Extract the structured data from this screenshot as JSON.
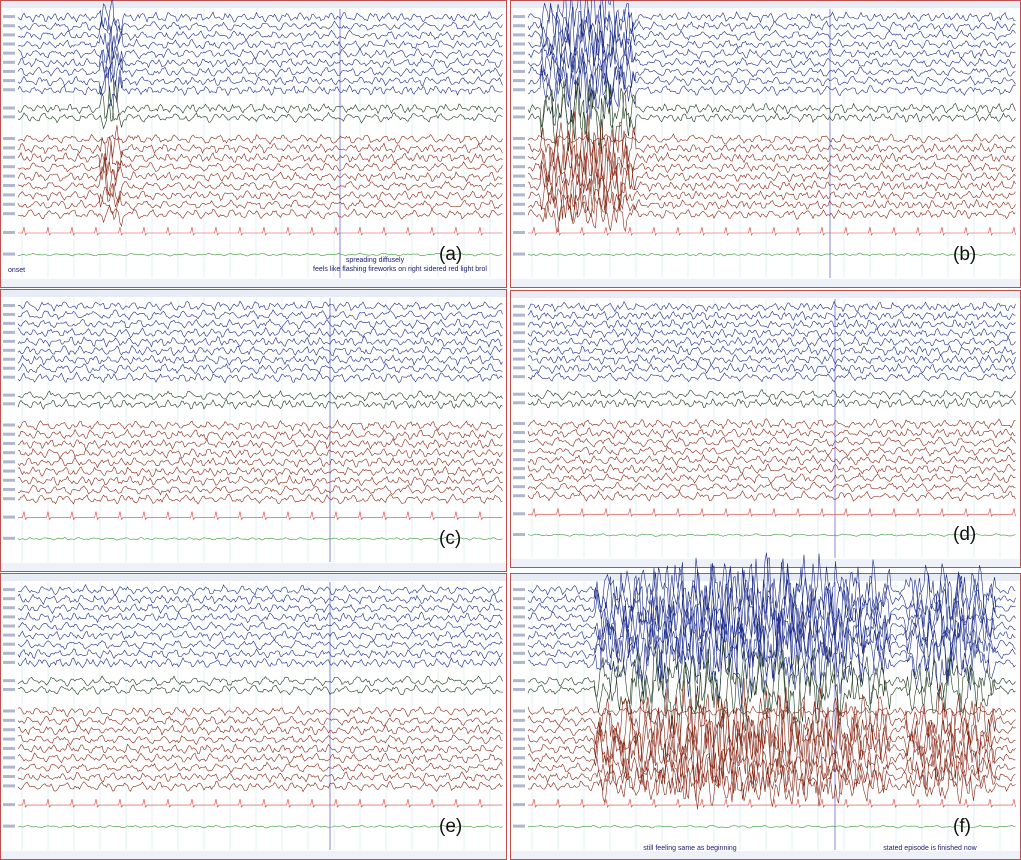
{
  "panels": [
    {
      "label": "(a)",
      "annotations": [
        "onset",
        "spreading diffusely",
        "feels like flashing fireworks on right sidered red light brol"
      ]
    },
    {
      "label": "(b)",
      "annotations": []
    },
    {
      "label": "(c)",
      "annotations": []
    },
    {
      "label": "(d)",
      "annotations": []
    },
    {
      "label": "(e)",
      "annotations": []
    },
    {
      "label": "(f)",
      "annotations": [
        "still feeling same as beginning",
        "stated episode is finished now"
      ]
    }
  ]
}
